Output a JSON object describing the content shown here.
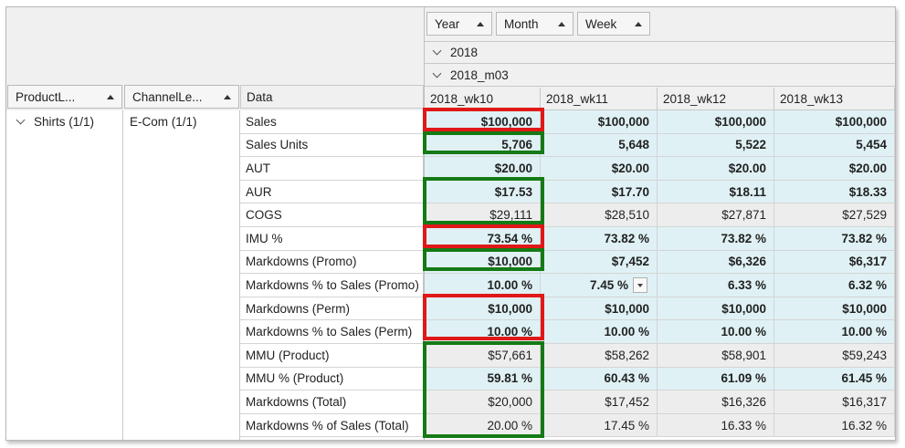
{
  "filter_fields": [
    {
      "label": "Year"
    },
    {
      "label": "Month"
    },
    {
      "label": "Week"
    }
  ],
  "row_fields": [
    {
      "label": "ProductL..."
    },
    {
      "label": "ChannelLe..."
    }
  ],
  "data_header": "Data",
  "year": "2018",
  "month": "2018_m03",
  "weeks": [
    "2018_wk10",
    "2018_wk11",
    "2018_wk12",
    "2018_wk13"
  ],
  "product": "Shirts (1/1)",
  "channel": "E-Com (1/1)",
  "rows": [
    {
      "label": "Sales",
      "values": [
        "$100,000",
        "$100,000",
        "$100,000",
        "$100,000"
      ],
      "bold": true,
      "shade": "hl"
    },
    {
      "label": "Sales Units",
      "values": [
        "5,706",
        "5,648",
        "5,522",
        "5,454"
      ],
      "bold": true,
      "shade": "hl"
    },
    {
      "label": "AUT",
      "values": [
        "$20.00",
        "$20.00",
        "$20.00",
        "$20.00"
      ],
      "bold": true,
      "shade": "hl"
    },
    {
      "label": "AUR",
      "values": [
        "$17.53",
        "$17.70",
        "$18.11",
        "$18.33"
      ],
      "bold": true,
      "shade": "hl"
    },
    {
      "label": "COGS",
      "values": [
        "$29,111",
        "$28,510",
        "$27,871",
        "$27,529"
      ],
      "bold": false,
      "shade": "gr"
    },
    {
      "label": "IMU %",
      "values": [
        "73.54 %",
        "73.82 %",
        "73.82 %",
        "73.82 %"
      ],
      "bold": true,
      "shade": "hl"
    },
    {
      "label": "Markdowns (Promo)",
      "values": [
        "$10,000",
        "$7,452",
        "$6,326",
        "$6,317"
      ],
      "bold": true,
      "shade": "hl"
    },
    {
      "label": "Markdowns % to Sales (Promo)",
      "values": [
        "10.00 %",
        "7.45 %",
        "6.33 %",
        "6.32 %"
      ],
      "bold": true,
      "shade": "hl"
    },
    {
      "label": "Markdowns (Perm)",
      "values": [
        "$10,000",
        "$10,000",
        "$10,000",
        "$10,000"
      ],
      "bold": true,
      "shade": "hl"
    },
    {
      "label": "Markdowns % to Sales (Perm)",
      "values": [
        "10.00 %",
        "10.00 %",
        "10.00 %",
        "10.00 %"
      ],
      "bold": true,
      "shade": "hl"
    },
    {
      "label": "MMU (Product)",
      "values": [
        "$57,661",
        "$58,262",
        "$58,901",
        "$59,243"
      ],
      "bold": false,
      "shade": "gr"
    },
    {
      "label": "MMU % (Product)",
      "values": [
        "59.81 %",
        "60.43 %",
        "61.09 %",
        "61.45 %"
      ],
      "bold": true,
      "shade": "hl"
    },
    {
      "label": "Markdowns (Total)",
      "values": [
        "$20,000",
        "$17,452",
        "$16,326",
        "$16,317"
      ],
      "bold": false,
      "shade": "gr"
    },
    {
      "label": "Markdowns % of Sales (Total)",
      "values": [
        "20.00 %",
        "17.45 %",
        "16.33 %",
        "16.32 %"
      ],
      "bold": false,
      "shade": "gr"
    }
  ],
  "colors": {
    "highlight_row": "#dff1f5",
    "gray_row": "#ededed",
    "red_box": "#e01818",
    "green_box": "#157a15"
  }
}
